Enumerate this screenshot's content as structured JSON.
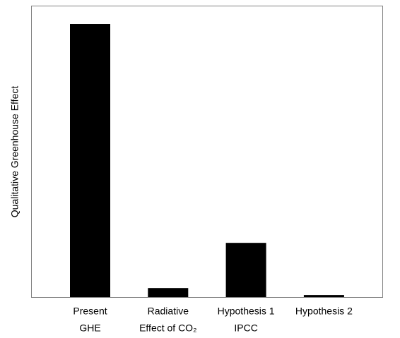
{
  "chart_data": {
    "type": "bar",
    "y_label": "Qualitative Greenhouse Effect",
    "categories": [
      [
        "Present",
        "GHE"
      ],
      [
        "Radiative",
        "Effect of CO₂"
      ],
      [
        "Hypothesis 1",
        "IPCC"
      ],
      [
        "Hypothesis 2"
      ]
    ],
    "values": [
      93.7,
      3.1,
      18.6,
      0.7
    ],
    "color": "#000000",
    "ylim": [
      0,
      100
    ]
  }
}
